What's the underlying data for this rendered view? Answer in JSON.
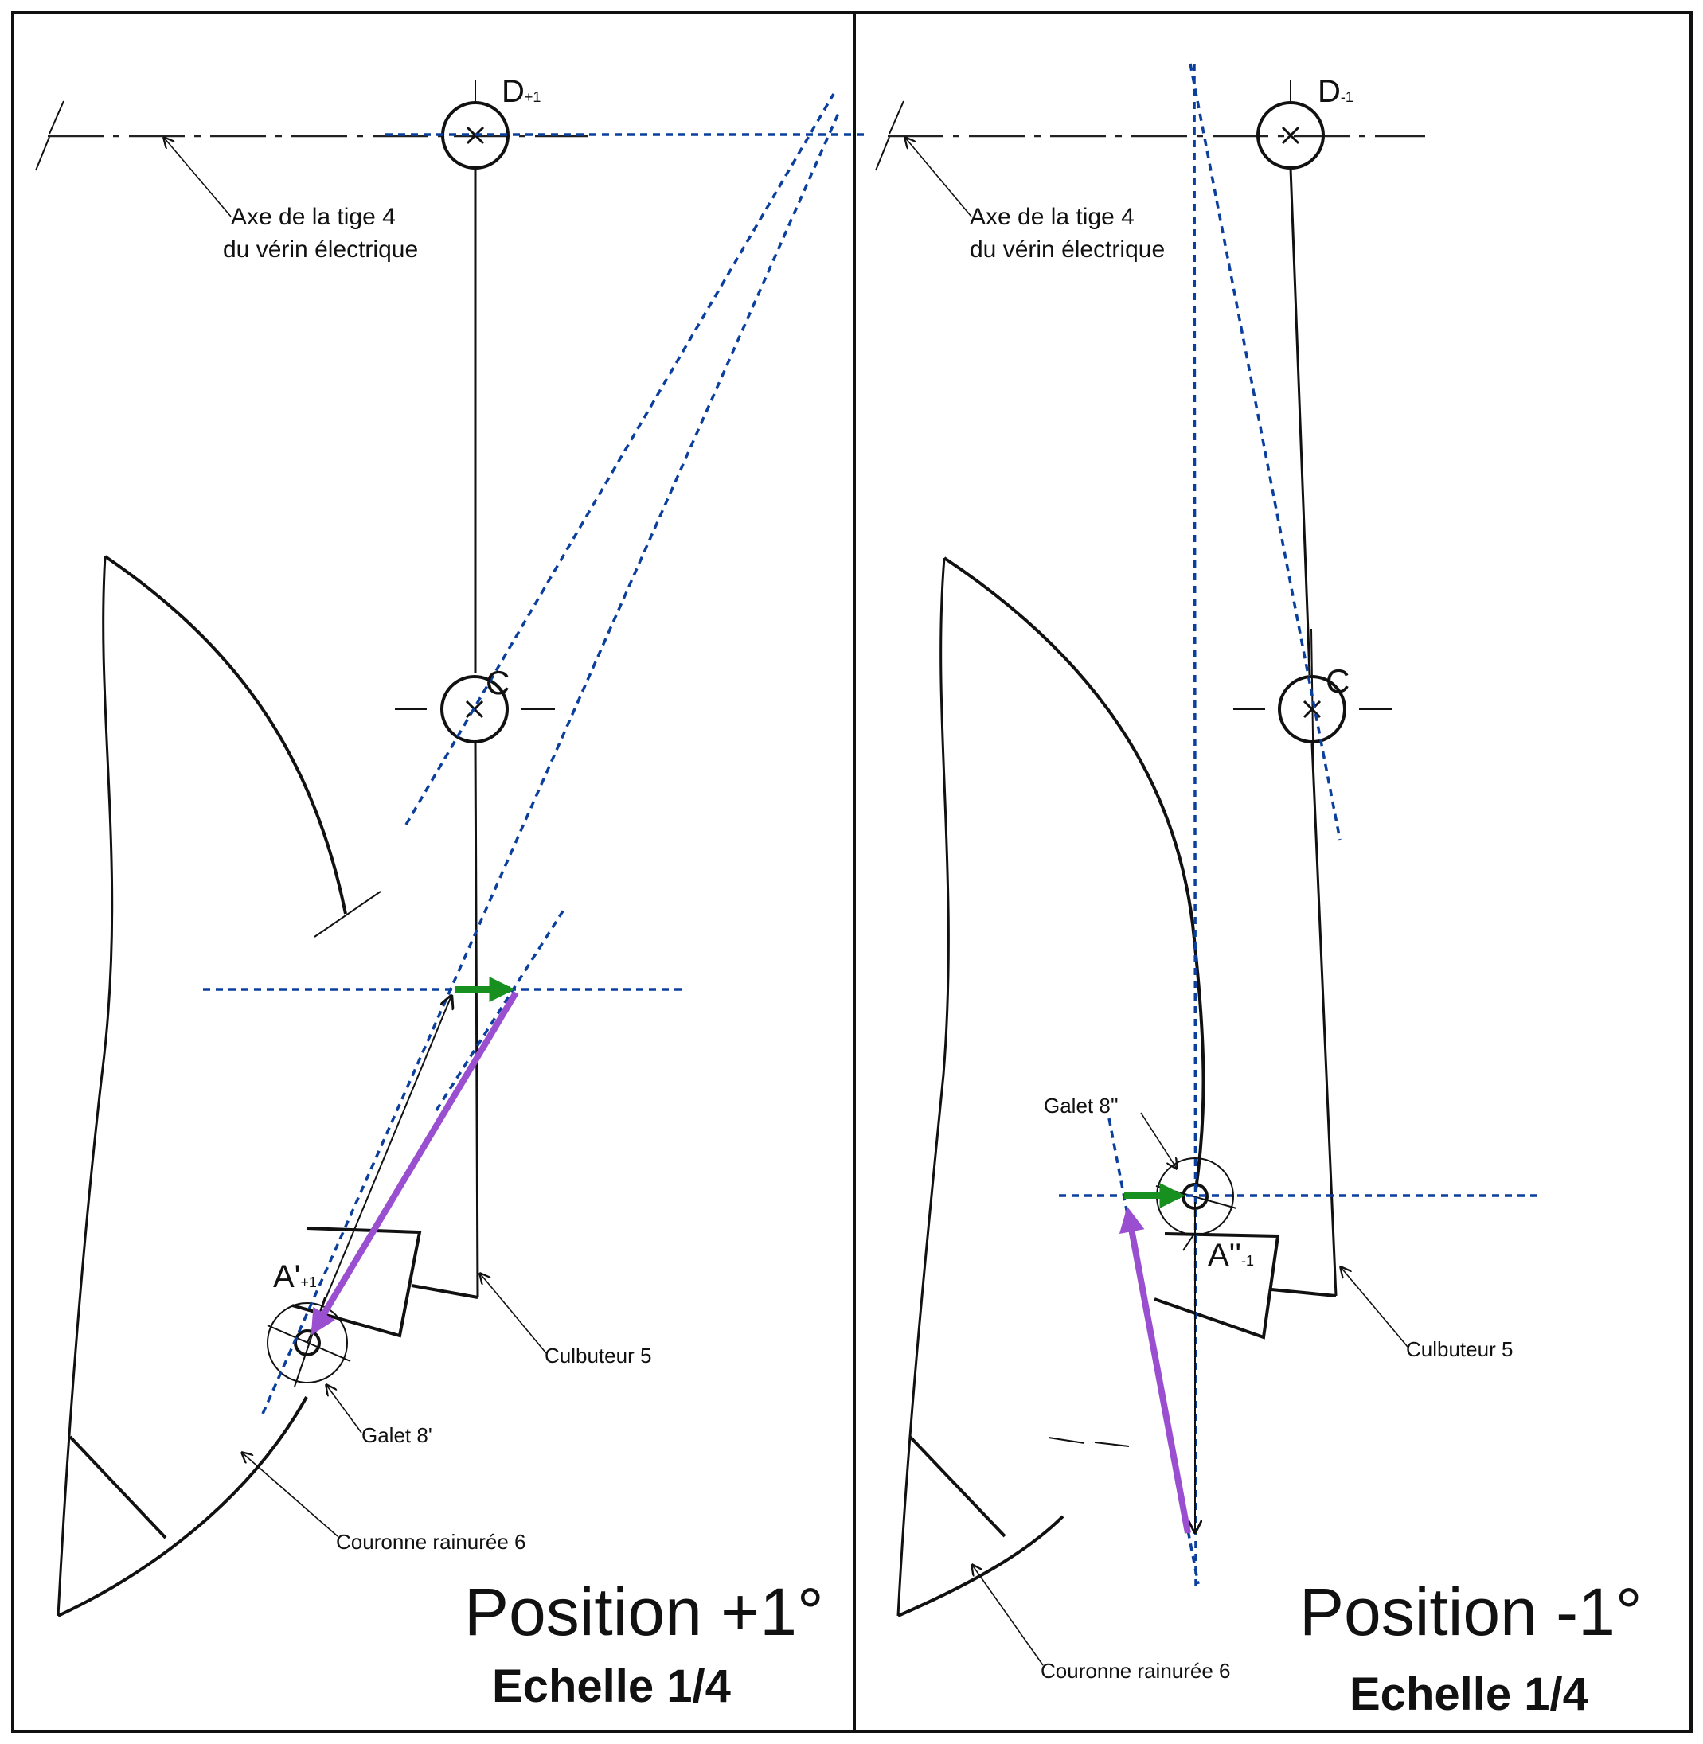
{
  "left_panel": {
    "title": "Position +1°",
    "scale": "Echelle 1/4",
    "point_D": {
      "main": "D",
      "sub": "+1"
    },
    "point_C": "C",
    "point_A": {
      "main": "A'",
      "sub": "+1"
    },
    "axis_label_line1": "Axe de la tige 4",
    "axis_label_line2": "du vérin électrique",
    "rocker_label": "Culbuteur 5",
    "roller_label": "Galet 8'",
    "crown_label": "Couronne rainurée 6"
  },
  "right_panel": {
    "title": "Position -1°",
    "scale": "Echelle 1/4",
    "point_D": {
      "main": "D",
      "sub": "-1"
    },
    "point_C": "C",
    "point_A": {
      "main": "A''",
      "sub": "-1"
    },
    "axis_label_line1": "Axe de la tige 4",
    "axis_label_line2": "du vérin électrique",
    "rocker_label": "Culbuteur 5",
    "roller_label": "Galet 8''",
    "crown_label": "Couronne rainurée 6"
  },
  "colors": {
    "construction_lines": "#0b3f9e",
    "velocity_green": "#17901f",
    "velocity_purple": "#9a4fd0",
    "linework": "#111111"
  }
}
